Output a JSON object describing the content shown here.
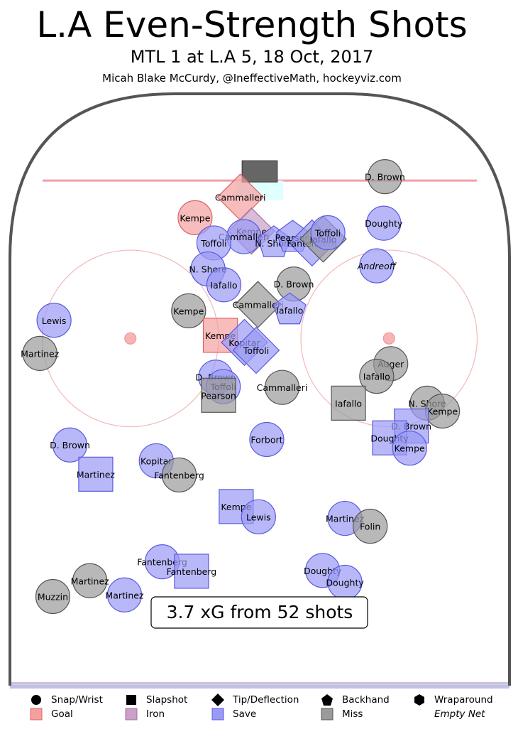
{
  "header": {
    "title": "L.A Even-Strength Shots",
    "subtitle": "MTL 1 at L.A 5, 18 Oct, 2017",
    "credit": "Micah Blake McCurdy, @IneffectiveMath, hockeyviz.com"
  },
  "summary": "3.7 xG from 52 shots",
  "colors": {
    "goal": "#f4a0a0",
    "goal_edge": "#e06060",
    "iron": "#c8a0c8",
    "iron_edge": "#a070a0",
    "save": "#9a9af5",
    "save_edge": "#5a5ae0",
    "miss": "#9a9a9a",
    "miss_edge": "#555555",
    "boards": "#555555",
    "red_line": "#f0a0a8",
    "blue_line": "#b8c4e8",
    "crease": "#e0ffff"
  },
  "legend": {
    "shapes": [
      {
        "label": "Snap/Wrist",
        "shape": "circle"
      },
      {
        "label": "Slapshot",
        "shape": "square"
      },
      {
        "label": "Tip/Deflection",
        "shape": "diamond"
      },
      {
        "label": "Backhand",
        "shape": "pentagon"
      },
      {
        "label": "Wraparound",
        "shape": "hexagon"
      }
    ],
    "outcomes": [
      {
        "label": "Goal",
        "key": "goal"
      },
      {
        "label": "Iron",
        "key": "iron"
      },
      {
        "label": "Save",
        "key": "save"
      },
      {
        "label": "Miss",
        "key": "miss"
      }
    ],
    "empty_net": "Empty Net"
  },
  "chart_data": {
    "type": "scatter",
    "title": "L.A Even-Strength Shots",
    "xlim": [
      -42.5,
      42.5
    ],
    "ylim": [
      25,
      100
    ],
    "note": "shot locations in rink feet; x across the ice, y distance from centre ice toward the attacking goal line at 89",
    "shots": [
      {
        "player": "Cammalleri",
        "x": -3.3,
        "y": 86.9,
        "shape": "diamond",
        "outcome": "goal"
      },
      {
        "player": "Kempe",
        "x": -11.0,
        "y": 84.3,
        "shape": "circle",
        "outcome": "goal"
      },
      {
        "player": "Kempe",
        "x": -1.4,
        "y": 82.6,
        "shape": "diamond",
        "outcome": "iron"
      },
      {
        "player": "Cammalleri",
        "x": -2.7,
        "y": 81.9,
        "shape": "circle",
        "outcome": "save"
      },
      {
        "player": "Toffoli",
        "x": -7.8,
        "y": 81.1,
        "shape": "circle",
        "outcome": "save"
      },
      {
        "player": "N. Shore",
        "x": 2.4,
        "y": 81.1,
        "shape": "pentagon",
        "outcome": "save"
      },
      {
        "player": "Pearson",
        "x": 5.6,
        "y": 81.8,
        "shape": "pentagon",
        "outcome": "save"
      },
      {
        "player": "Fantenberg",
        "x": 8.9,
        "y": 81.1,
        "shape": "diamond",
        "outcome": "save"
      },
      {
        "player": "Iafallo",
        "x": 10.8,
        "y": 81.6,
        "shape": "diamond",
        "outcome": "miss"
      },
      {
        "player": "Toffoli",
        "x": 11.6,
        "y": 82.4,
        "shape": "circle",
        "outcome": "save"
      },
      {
        "player": "D. Brown",
        "x": 21.3,
        "y": 89.5,
        "shape": "circle",
        "outcome": "miss"
      },
      {
        "player": "Doughty",
        "x": 21.1,
        "y": 83.6,
        "shape": "circle",
        "outcome": "save"
      },
      {
        "player": "Andreoff",
        "x": 19.9,
        "y": 78.2,
        "shape": "circle",
        "outcome": "save"
      },
      {
        "player": "N. Shore",
        "x": -8.8,
        "y": 77.8,
        "shape": "circle",
        "outcome": "save"
      },
      {
        "player": "Iafallo",
        "x": -6.1,
        "y": 75.8,
        "shape": "circle",
        "outcome": "save"
      },
      {
        "player": "D. Brown",
        "x": 5.8,
        "y": 75.9,
        "shape": "circle",
        "outcome": "miss"
      },
      {
        "player": "Cammalleri",
        "x": -0.3,
        "y": 73.3,
        "shape": "diamond",
        "outcome": "miss"
      },
      {
        "player": "Iafallo",
        "x": 5.1,
        "y": 72.6,
        "shape": "pentagon",
        "outcome": "save"
      },
      {
        "player": "Kempe",
        "x": -12.1,
        "y": 72.5,
        "shape": "circle",
        "outcome": "miss"
      },
      {
        "player": "Lewis",
        "x": -35.0,
        "y": 71.3,
        "shape": "circle",
        "outcome": "save"
      },
      {
        "player": "Martinez",
        "x": -37.4,
        "y": 67.1,
        "shape": "circle",
        "outcome": "miss"
      },
      {
        "player": "Kempe",
        "x": -6.7,
        "y": 69.4,
        "shape": "square",
        "outcome": "goal"
      },
      {
        "player": "Kopitar",
        "x": -2.6,
        "y": 68.5,
        "shape": "diamond",
        "outcome": "save"
      },
      {
        "player": "Toffoli",
        "x": -0.6,
        "y": 67.5,
        "shape": "diamond",
        "outcome": "save"
      },
      {
        "player": "D. Brown",
        "x": -7.5,
        "y": 64.1,
        "shape": "circle",
        "outcome": "save"
      },
      {
        "player": "Toffoli",
        "x": -6.2,
        "y": 62.9,
        "shape": "circle",
        "outcome": "save"
      },
      {
        "player": "Pearson",
        "x": -7.0,
        "y": 61.8,
        "shape": "square",
        "outcome": "miss"
      },
      {
        "player": "Cammalleri",
        "x": 3.8,
        "y": 62.8,
        "shape": "circle",
        "outcome": "miss"
      },
      {
        "player": "Auger",
        "x": 22.3,
        "y": 65.8,
        "shape": "circle",
        "outcome": "miss"
      },
      {
        "player": "Iafallo",
        "x": 19.9,
        "y": 64.2,
        "shape": "circle",
        "outcome": "miss"
      },
      {
        "player": "Iafallo",
        "x": 15.1,
        "y": 60.8,
        "shape": "square",
        "outcome": "miss"
      },
      {
        "player": "N. Shore",
        "x": 28.5,
        "y": 60.8,
        "shape": "circle",
        "outcome": "miss"
      },
      {
        "player": "Kempe",
        "x": 31.1,
        "y": 59.8,
        "shape": "circle",
        "outcome": "miss"
      },
      {
        "player": "D. Brown",
        "x": 25.8,
        "y": 57.9,
        "shape": "square",
        "outcome": "save"
      },
      {
        "player": "Doughty",
        "x": 22.1,
        "y": 56.4,
        "shape": "square",
        "outcome": "save"
      },
      {
        "player": "Kempe",
        "x": 25.5,
        "y": 55.1,
        "shape": "circle",
        "outcome": "save"
      },
      {
        "player": "D. Brown",
        "x": -32.3,
        "y": 55.5,
        "shape": "circle",
        "outcome": "save"
      },
      {
        "player": "Martinez",
        "x": -27.9,
        "y": 51.8,
        "shape": "square",
        "outcome": "save"
      },
      {
        "player": "Kopitar",
        "x": -17.6,
        "y": 53.5,
        "shape": "circle",
        "outcome": "save"
      },
      {
        "player": "Fantenberg",
        "x": -13.7,
        "y": 51.7,
        "shape": "circle",
        "outcome": "miss"
      },
      {
        "player": "Forbort",
        "x": 1.2,
        "y": 56.2,
        "shape": "circle",
        "outcome": "save"
      },
      {
        "player": "Kempe",
        "x": -4.0,
        "y": 47.7,
        "shape": "square",
        "outcome": "save"
      },
      {
        "player": "Lewis",
        "x": -0.2,
        "y": 46.4,
        "shape": "circle",
        "outcome": "save"
      },
      {
        "player": "Martinez",
        "x": 14.5,
        "y": 46.2,
        "shape": "circle",
        "outcome": "save"
      },
      {
        "player": "Folin",
        "x": 18.8,
        "y": 45.2,
        "shape": "circle",
        "outcome": "miss"
      },
      {
        "player": "Fantenberg",
        "x": -16.6,
        "y": 40.7,
        "shape": "circle",
        "outcome": "save"
      },
      {
        "player": "Fantenberg",
        "x": -11.6,
        "y": 39.5,
        "shape": "square",
        "outcome": "save"
      },
      {
        "player": "Martinez",
        "x": -28.9,
        "y": 38.3,
        "shape": "circle",
        "outcome": "miss"
      },
      {
        "player": "Martinez",
        "x": -23.0,
        "y": 36.5,
        "shape": "circle",
        "outcome": "save"
      },
      {
        "player": "Muzzin",
        "x": -35.2,
        "y": 36.3,
        "shape": "circle",
        "outcome": "miss"
      },
      {
        "player": "Doughty",
        "x": 10.7,
        "y": 39.6,
        "shape": "circle",
        "outcome": "save"
      },
      {
        "player": "Doughty",
        "x": 14.5,
        "y": 38.1,
        "shape": "circle",
        "outcome": "save"
      }
    ],
    "empty_net_players": [
      "Andreoff"
    ]
  }
}
